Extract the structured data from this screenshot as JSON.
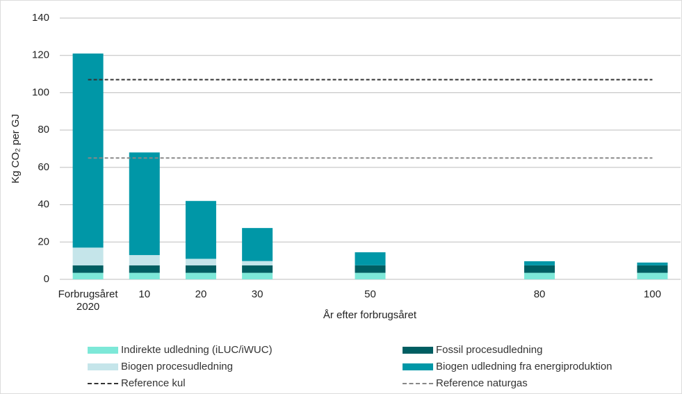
{
  "chart_data": {
    "type": "bar",
    "stacked": true,
    "xlabel": "År efter forbrugsåret",
    "ylabel": "Kg CO₂ per GJ",
    "x": [
      0,
      10,
      20,
      30,
      50,
      80,
      100
    ],
    "xlim": [
      -5,
      105
    ],
    "xticks": [
      {
        "value": 0,
        "label": "Forbrugsåret 2020"
      },
      10,
      20,
      30,
      50,
      80,
      100
    ],
    "ylim": [
      0,
      140
    ],
    "yticks": [
      0,
      20,
      40,
      60,
      80,
      100,
      120,
      140
    ],
    "grid": true,
    "series": [
      {
        "name": "Indirekte udledning (iLUC/iWUC)",
        "color": "#7de8d8",
        "values": [
          3.5,
          3.5,
          3.5,
          3.5,
          3.5,
          3.5,
          3.5
        ]
      },
      {
        "name": "Fossil procesudledning",
        "color": "#005e62",
        "values": [
          4,
          4,
          4,
          4,
          4,
          4,
          4
        ]
      },
      {
        "name": "Biogen procesudledning",
        "color": "#c5e5ea",
        "values": [
          9.5,
          5.5,
          3.5,
          2.3,
          0,
          0,
          0
        ]
      },
      {
        "name": "Biogen udledning fra energiproduktion",
        "color": "#0097a7",
        "values": [
          104,
          55,
          31,
          17.7,
          7,
          2.2,
          1.5
        ]
      }
    ],
    "reference_lines": [
      {
        "name": "Reference kul",
        "color": "#333333",
        "value": 107
      },
      {
        "name": "Reference naturgas",
        "color": "#888888",
        "value": 65
      }
    ]
  }
}
